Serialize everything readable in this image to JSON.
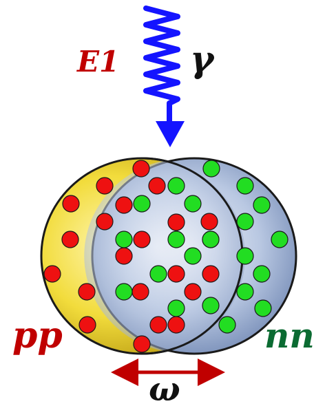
{
  "labels": {
    "e1": "E1",
    "gamma": "γ",
    "pp": "pp",
    "nn": "nn",
    "omega": "ω"
  },
  "colors": {
    "proton": "#ee1111",
    "neutron": "#22dd22",
    "photon": "#1414ff",
    "proton_region": "#f2dc3c",
    "neutron_region": "#aec0de",
    "arrow": "#c00000",
    "pp_label": "#c00000",
    "nn_label": "#0b6b32",
    "e1_label": "#c00000",
    "text_dark": "#111111"
  }
}
